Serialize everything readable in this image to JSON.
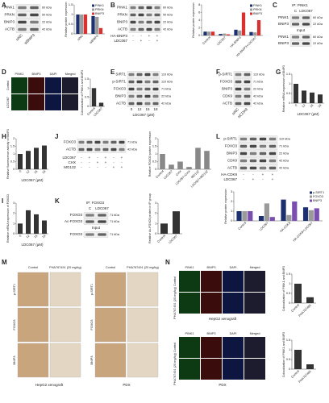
{
  "panels": {
    "A": {
      "letter": "A",
      "rows": [
        "PINK1",
        "PRKN",
        "BNIP3",
        "ACTB"
      ],
      "kda": [
        "60 kDa",
        "50 kDa",
        "22 kDa",
        "42 kDa"
      ],
      "lanes": [
        "siNC",
        "siBNIP3"
      ],
      "chart": {
        "ylabel": "Relative protein expression",
        "categories": [
          "siNC",
          "siBNIP3"
        ],
        "ylim": [
          0,
          1.5
        ],
        "yticks": [
          0,
          0.5,
          1,
          1.5
        ],
        "series": [
          {
            "name": "PINK1",
            "color": "#1c2f6e",
            "values": [
              1,
              0.92
            ]
          },
          {
            "name": "PRKN",
            "color": "#9a9a9a",
            "values": [
              1,
              0.88
            ]
          },
          {
            "name": "BNIP3",
            "color": "#d93030",
            "values": [
              1,
              0.3
            ]
          }
        ]
      }
    },
    "B": {
      "letter": "B",
      "rows": [
        "PINK1",
        "PRKN",
        "BNIP3",
        "ACTB"
      ],
      "kda": [
        "60 kDa",
        "50 kDa",
        "22 kDa",
        "42 kDa"
      ],
      "conditions": [
        {
          "label": "HA-BNIP3",
          "signs": [
            "-",
            "-",
            "+",
            "+"
          ]
        },
        {
          "label": "LDC067",
          "signs": [
            "-",
            "+",
            "-",
            "+"
          ]
        }
      ],
      "chart": {
        "ylabel": "Relative protein expression",
        "categories": [
          "Control",
          "LDC067",
          "HA-BNIP3",
          "HA-BNIP3+LDC067"
        ],
        "ylim": [
          0,
          8
        ],
        "yticks": [
          0,
          2,
          4,
          6,
          8
        ],
        "series": [
          {
            "name": "PINK1",
            "color": "#1c2f6e",
            "values": [
              1,
              0.4,
              1.5,
              0.9
            ]
          },
          {
            "name": "PRKN",
            "color": "#9a9a9a",
            "values": [
              1,
              0.5,
              1.3,
              0.8
            ]
          },
          {
            "name": "BNIP3",
            "color": "#d93030",
            "values": [
              1,
              0.3,
              6,
              4
            ]
          }
        ]
      }
    },
    "C": {
      "letter": "C",
      "title": "IP: PINK1",
      "lanes": [
        "C",
        "LDC067"
      ],
      "rows": [
        "PINK1",
        "BNIP3"
      ],
      "kda": [
        "60 kDa",
        "22 kDa"
      ],
      "subtitle": "Input",
      "rows2": [
        "PINK1",
        "BNIP3"
      ],
      "kda2": [
        "60 kDa",
        "22 kDa"
      ]
    },
    "D": {
      "letter": "D",
      "channels": [
        "PINK1",
        "BNIP3",
        "DAPI",
        "Merged"
      ],
      "groups": [
        "Control",
        "LDC067"
      ],
      "chart": {
        "ylabel": "Colocalization of PINK1 and BNIP3",
        "categories": [
          "Control",
          "LDC067"
        ],
        "values": [
          1,
          0.2
        ],
        "color": "#333333",
        "ylim": [
          0,
          1.5
        ],
        "yticks": [
          0,
          0.5,
          1,
          1.5
        ]
      }
    },
    "E": {
      "letter": "E",
      "rows": [
        "SIRT1",
        "p-SIRT1",
        "FOXO3",
        "BNIP3",
        "ACTB"
      ],
      "kda": [
        "110 kDa",
        "110 kDa",
        "71 kDa",
        "22 kDa",
        "42 kDa"
      ],
      "lanes": [
        "0",
        "12",
        "15",
        "18"
      ],
      "xlabel": "LDC067 (μM)"
    },
    "F": {
      "letter": "F",
      "rows": [
        "p-SIRT1",
        "FOXO3",
        "BNIP3",
        "CDK9",
        "ACTB"
      ],
      "kda": [
        "110 kDa",
        "71 kDa",
        "22 kDa",
        "42 kDa",
        "42 kDa"
      ],
      "lanes": [
        "siNC",
        "siCDK9"
      ]
    },
    "G": {
      "letter": "G",
      "chart": {
        "ylabel": "Relative mRNA expression of BNIP3",
        "categories": [
          "0",
          "12",
          "15",
          "18"
        ],
        "values": [
          1,
          0.65,
          0.55,
          0.45
        ],
        "color": "#333333",
        "ylim": [
          0,
          1.5
        ],
        "yticks": [
          0,
          0.5,
          1,
          1.5
        ],
        "xlabel": "LDC067 (μM)"
      }
    },
    "H": {
      "letter": "H",
      "chart": {
        "ylabel": "Relative fluorescence activity of BNIP3",
        "categories": [
          "0",
          "12",
          "15",
          "18"
        ],
        "values": [
          1,
          1.2,
          1.4,
          1.55
        ],
        "color": "#333333",
        "ylim": [
          0,
          2
        ],
        "yticks": [
          0,
          0.5,
          1,
          1.5,
          2
        ],
        "xlabel": "LDC067 (μM)"
      }
    },
    "I": {
      "letter": "I",
      "chart": {
        "ylabel": "Relative mRNA expression of FOXO3",
        "categories": [
          "0",
          "12",
          "15",
          "18"
        ],
        "values": [
          1,
          2.3,
          1.9,
          1.3
        ],
        "color": "#333333",
        "ylim": [
          0,
          3
        ],
        "yticks": [
          0,
          1,
          2,
          3
        ],
        "xlabel": "LDC067 (μM)"
      }
    },
    "J": {
      "letter": "J",
      "rows": [
        "FOXO3",
        "ACTB"
      ],
      "kda": [
        "71 kDa",
        "42 kDa"
      ],
      "conditions": [
        {
          "label": "LDC067",
          "signs": [
            "-",
            "+",
            "-",
            "+",
            "-",
            "+"
          ]
        },
        {
          "label": "CHX",
          "signs": [
            "-",
            "-",
            "+",
            "+",
            "-",
            "-"
          ]
        },
        {
          "label": "MG132",
          "signs": [
            "-",
            "-",
            "-",
            "-",
            "+",
            "+"
          ]
        }
      ],
      "chart": {
        "ylabel": "Relative FOXO3 protein expression",
        "categories": [
          "Control",
          "LDC067",
          "CHX",
          "LDC067+CHX",
          "MG132",
          "LDC067+MG132"
        ],
        "values": [
          1,
          0.3,
          0.5,
          0.15,
          1.4,
          1.2
        ],
        "color": "#888888",
        "ylim": [
          0,
          2
        ],
        "yticks": [
          0,
          0.5,
          1,
          1.5,
          2
        ]
      }
    },
    "K": {
      "letter": "K",
      "title": "IP: FOXO3",
      "lanes": [
        "C",
        "LDC067"
      ],
      "rows": [
        "FOXO3",
        "Ac-FOXO3"
      ],
      "kda": [
        "71 kDa",
        "71 kDa"
      ],
      "subtitle": "Input",
      "rows2": [
        "FOXO3"
      ],
      "kda2": [
        "71 kDa"
      ],
      "chart": {
        "ylabel": "Relative Ac-FOXO3 protein in IP group",
        "categories": [
          "Control",
          "LDC067"
        ],
        "values": [
          1,
          2.2
        ],
        "color": "#333333",
        "ylim": [
          0,
          3
        ],
        "yticks": [
          0,
          1,
          2,
          3
        ]
      }
    },
    "L": {
      "letter": "L",
      "rows": [
        "p-SIRT1",
        "FOXO3",
        "BNIP3",
        "CDK9",
        "ACTB"
      ],
      "kda": [
        "110 kDa",
        "71 kDa",
        "22 kDa",
        "42 kDa",
        "42 kDa"
      ],
      "conditions": [
        {
          "label": "HA-CDK9",
          "signs": [
            "-",
            "-",
            "+",
            "+"
          ]
        },
        {
          "label": "LDC067",
          "signs": [
            "-",
            "+",
            "-",
            "+"
          ]
        }
      ],
      "chart": {
        "ylabel": "Relative protein expression",
        "categories": [
          "Control",
          "LDC067",
          "HA-CDK9",
          "HA-CDK9+LDC067"
        ],
        "ylim": [
          0,
          3
        ],
        "yticks": [
          0,
          1,
          2,
          3
        ],
        "series": [
          {
            "name": "p-SIRT1",
            "color": "#1c2f6e",
            "values": [
              1,
              0.5,
              2.2,
              1.4
            ]
          },
          {
            "name": "FOXO3",
            "color": "#9a9a9a",
            "values": [
              1,
              1.8,
              0.6,
              1.1
            ]
          },
          {
            "name": "BNIP3",
            "color": "#7a4fb0",
            "values": [
              1,
              0.4,
              2,
              1.3
            ]
          }
        ]
      }
    },
    "M": {
      "letter": "M",
      "columns": [
        "Control",
        "PHA767491 (20 mg/kg)"
      ],
      "rows": [
        "p-SIRT1",
        "FOXO3",
        "BNIP3"
      ],
      "captions": [
        "HepG2 xenograft",
        "PDX"
      ]
    },
    "N": {
      "letter": "N",
      "channels": [
        "PINK1",
        "BNIP3",
        "DAPI",
        "Merged"
      ],
      "groups": [
        "Control",
        "PHA767491 (20 mg/kg)"
      ],
      "captions": [
        "HepG2 xenograft",
        "PDX"
      ],
      "charts": [
        {
          "ylabel": "Colocalization of PINK1 and BNIP3",
          "categories": [
            "Control",
            "PHA767491"
          ],
          "values": [
            1,
            0.3
          ],
          "color": "#333333",
          "ylim": [
            0,
            1.5
          ],
          "yticks": [
            0,
            0.5,
            1,
            1.5
          ]
        },
        {
          "ylabel": "Colocalization of PINK1 and BNIP3",
          "categories": [
            "Control",
            "PHA767491"
          ],
          "values": [
            1,
            0.25
          ],
          "color": "#333333",
          "ylim": [
            0,
            1.5
          ],
          "yticks": [
            0,
            0.5,
            1,
            1.5
          ]
        }
      ]
    }
  }
}
